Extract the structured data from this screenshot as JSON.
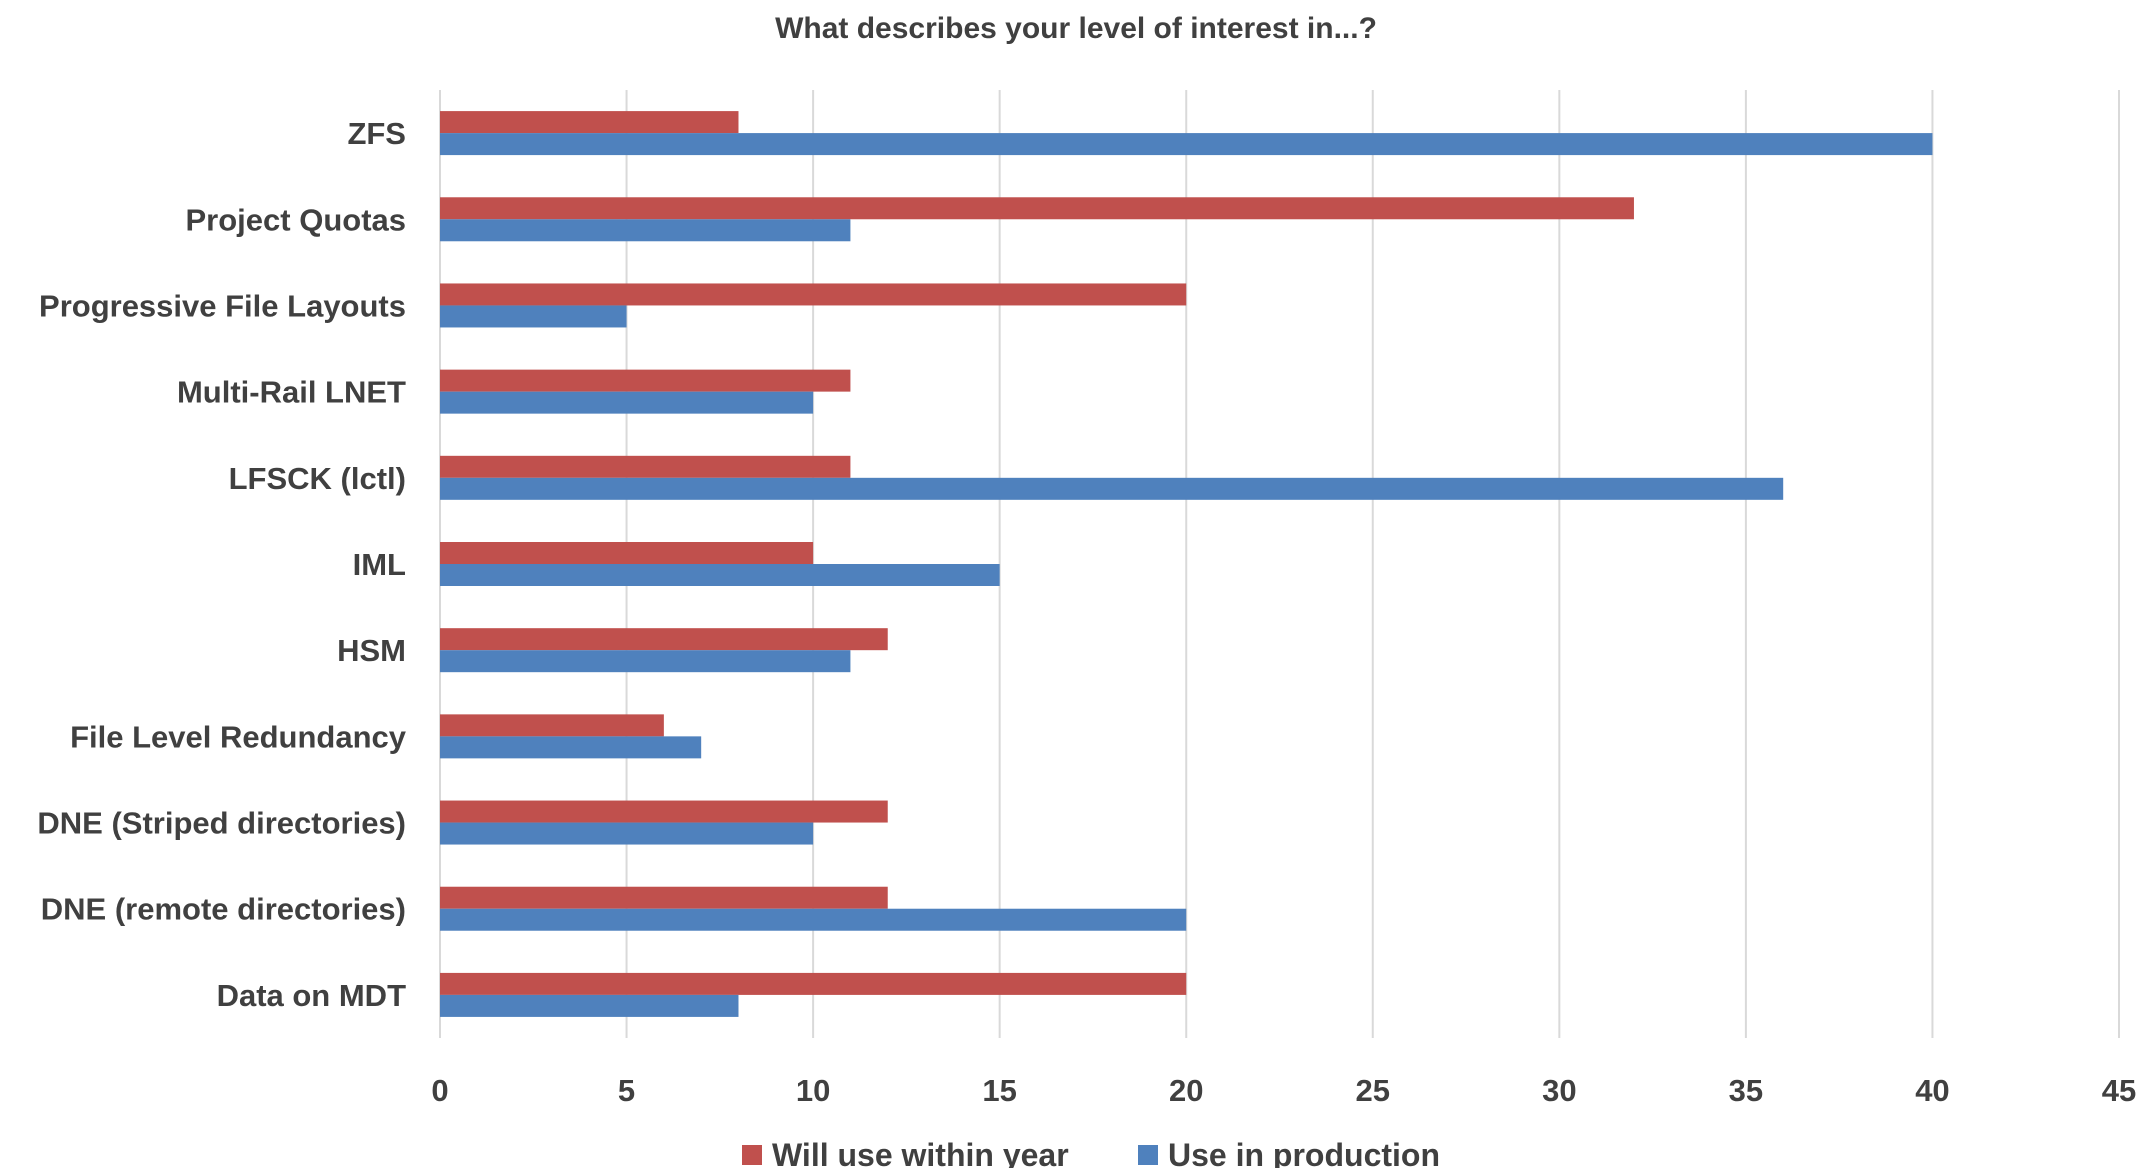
{
  "chart_data": {
    "type": "bar",
    "orientation": "horizontal",
    "title": "What describes your level of interest in...?",
    "categories": [
      "ZFS",
      "Project Quotas",
      "Progressive File Layouts",
      "Multi-Rail LNET",
      "LFSCK (lctl)",
      "IML",
      "HSM",
      "File Level Redundancy",
      "DNE (Striped directories)",
      "DNE (remote directories)",
      "Data on MDT"
    ],
    "series": [
      {
        "name": "Will use within year",
        "color": "#c0504d",
        "values": [
          8,
          32,
          20,
          11,
          11,
          10,
          12,
          6,
          12,
          12,
          20
        ]
      },
      {
        "name": "Use in production",
        "color": "#4f81bd",
        "values": [
          40,
          11,
          5,
          10,
          36,
          15,
          11,
          7,
          10,
          20,
          8
        ]
      }
    ],
    "xlim": [
      0,
      45
    ],
    "xticks": [
      0,
      5,
      10,
      15,
      20,
      25,
      30,
      35,
      40,
      45
    ],
    "grid": "vertical",
    "legend_position": "bottom",
    "xlabel": "",
    "ylabel": ""
  }
}
